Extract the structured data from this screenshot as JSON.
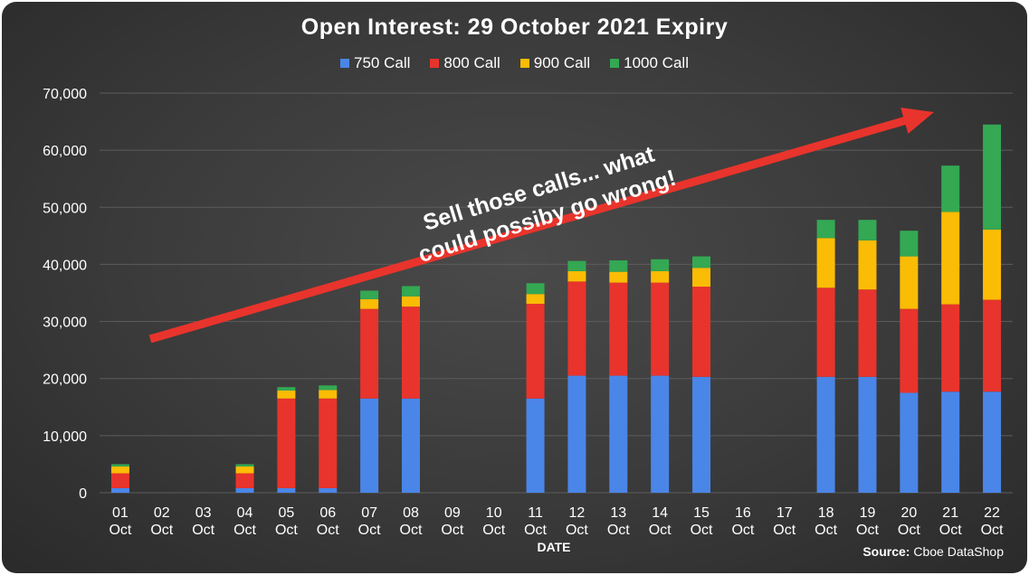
{
  "chart_data": {
    "type": "bar",
    "stacked": true,
    "title": "Open Interest: 29 October 2021 Expiry",
    "xlabel": "DATE",
    "ylabel": "",
    "ylim": [
      0,
      70000
    ],
    "yticks": [
      0,
      10000,
      20000,
      30000,
      40000,
      50000,
      60000,
      70000
    ],
    "ytick_labels": [
      "0",
      "10,000",
      "20,000",
      "30,000",
      "40,000",
      "50,000",
      "60,000",
      "70,000"
    ],
    "grid": true,
    "legend_position": "top",
    "categories": [
      [
        "01",
        "Oct"
      ],
      [
        "02",
        "Oct"
      ],
      [
        "03",
        "Oct"
      ],
      [
        "04",
        "Oct"
      ],
      [
        "05",
        "Oct"
      ],
      [
        "06",
        "Oct"
      ],
      [
        "07",
        "Oct"
      ],
      [
        "08",
        "Oct"
      ],
      [
        "09",
        "Oct"
      ],
      [
        "10",
        "Oct"
      ],
      [
        "11",
        "Oct"
      ],
      [
        "12",
        "Oct"
      ],
      [
        "13",
        "Oct"
      ],
      [
        "14",
        "Oct"
      ],
      [
        "15",
        "Oct"
      ],
      [
        "16",
        "Oct"
      ],
      [
        "17",
        "Oct"
      ],
      [
        "18",
        "Oct"
      ],
      [
        "19",
        "Oct"
      ],
      [
        "20",
        "Oct"
      ],
      [
        "21",
        "Oct"
      ],
      [
        "22",
        "Oct"
      ]
    ],
    "series": [
      {
        "name": "750 Call",
        "color": "#4a86e8",
        "values": [
          800,
          0,
          0,
          800,
          800,
          800,
          16500,
          16500,
          0,
          0,
          16500,
          20500,
          20500,
          20500,
          20300,
          0,
          0,
          20300,
          20300,
          17500,
          17700,
          17700
        ]
      },
      {
        "name": "800 Call",
        "color": "#e8342c",
        "values": [
          2600,
          0,
          0,
          2600,
          15700,
          15700,
          15700,
          16100,
          0,
          0,
          16600,
          16500,
          16300,
          16300,
          15800,
          0,
          0,
          15600,
          15300,
          14700,
          15300,
          16100
        ]
      },
      {
        "name": "900 Call",
        "color": "#fbbc05",
        "values": [
          1200,
          0,
          0,
          1200,
          1400,
          1500,
          1700,
          1800,
          0,
          0,
          1700,
          1800,
          1900,
          2000,
          3300,
          0,
          0,
          8700,
          8600,
          9200,
          16200,
          12300
        ]
      },
      {
        "name": "1000 Call",
        "color": "#34a853",
        "values": [
          400,
          0,
          0,
          400,
          600,
          800,
          1500,
          1800,
          0,
          0,
          1900,
          1800,
          2000,
          2100,
          2000,
          0,
          0,
          3200,
          3600,
          4500,
          8100,
          18400
        ]
      }
    ],
    "annotation": {
      "lines": [
        "Sell those calls... what",
        "could possiby go wrong!"
      ],
      "arrow": true,
      "arrow_color": "#e8342c"
    },
    "source_label": "Source:",
    "source_text": "Cboe DataShop"
  }
}
